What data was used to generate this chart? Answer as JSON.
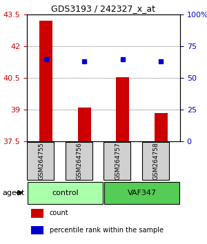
{
  "title": "GDS3193 / 242327_x_at",
  "samples": [
    "GSM264755",
    "GSM264756",
    "GSM264757",
    "GSM264758"
  ],
  "bar_values": [
    43.2,
    39.1,
    40.55,
    38.85
  ],
  "percentile_values": [
    41.7,
    41.6,
    41.75,
    41.6
  ],
  "percentile_pct": [
    65,
    63,
    65,
    63
  ],
  "ylim_left": [
    37.5,
    43.5
  ],
  "ylim_right": [
    0,
    100
  ],
  "yticks_left": [
    37.5,
    39.0,
    40.5,
    42.0,
    43.5
  ],
  "yticks_right": [
    0,
    25,
    50,
    75,
    100
  ],
  "ytick_labels_left": [
    "37.5",
    "39",
    "40.5",
    "42",
    "43.5"
  ],
  "ytick_labels_right": [
    "0",
    "25",
    "50",
    "75",
    "100%"
  ],
  "bar_color": "#cc0000",
  "dot_color": "#0000cc",
  "groups": [
    {
      "label": "control",
      "indices": [
        0,
        1
      ],
      "color": "#aaffaa"
    },
    {
      "label": "VAF347",
      "indices": [
        2,
        3
      ],
      "color": "#55cc55"
    }
  ],
  "group_label_attr": "agent",
  "xlabel_color_left": "#cc0000",
  "xlabel_color_right": "#0000cc",
  "background_color": "#ffffff",
  "plot_bg": "#ffffff",
  "grid_color": "#000000",
  "legend_items": [
    {
      "label": "count",
      "color": "#cc0000"
    },
    {
      "label": "percentile rank within the sample",
      "color": "#0000cc"
    }
  ]
}
